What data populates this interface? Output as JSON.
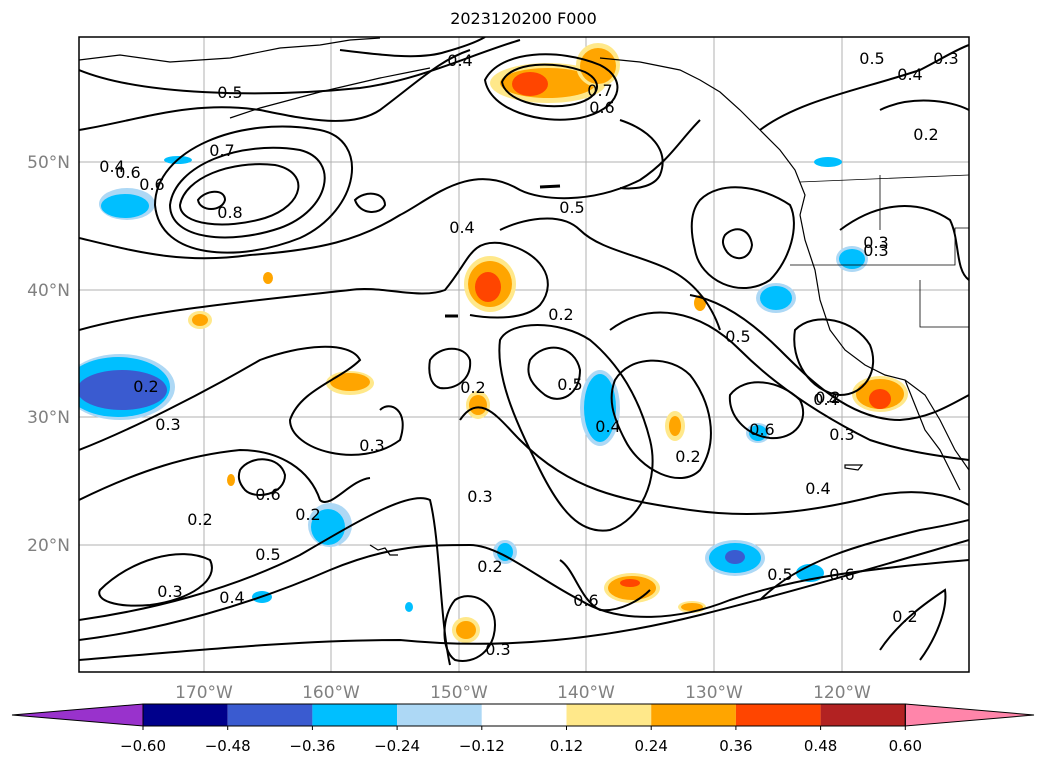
{
  "title": "2023120200 F000",
  "lat_labels": [
    "50°N",
    "40°N",
    "30°N",
    "20°N"
  ],
  "lon_labels": [
    "170°W",
    "160°W",
    "150°W",
    "140°W",
    "130°W",
    "120°W"
  ],
  "colorbar": {
    "ticks": [
      "−0.60",
      "−0.48",
      "−0.36",
      "−0.24",
      "−0.12",
      "0.12",
      "0.24",
      "0.36",
      "0.48",
      "0.60"
    ],
    "colors": [
      "#9932cc",
      "#00008b",
      "#3a5bd0",
      "#00bfff",
      "#add8f5",
      "#ffffff",
      "#ffe88a",
      "#ffa500",
      "#ff4500",
      "#b22222",
      "#ff85aa"
    ]
  },
  "contour_labels": [
    "0.5",
    "0.4",
    "0.7",
    "0.6",
    "0.4",
    "0.6",
    "0.7",
    "0.8",
    "0.5",
    "0.4",
    "0.3",
    "0.2",
    "0.3",
    "0.3",
    "0.5",
    "0.4",
    "0.6",
    "0.2",
    "0.5",
    "0.4",
    "0.2",
    "0.3",
    "0.5",
    "0.6",
    "0.4",
    "0.3",
    "0.2",
    "0.6",
    "0.2",
    "0.3",
    "0.2",
    "0.3",
    "0.4",
    "0.2",
    "0.2",
    "0.5",
    "0.4",
    "0.3",
    "0.6",
    "0.5",
    "0.6",
    "0.2",
    "0.3",
    "0.2"
  ]
}
